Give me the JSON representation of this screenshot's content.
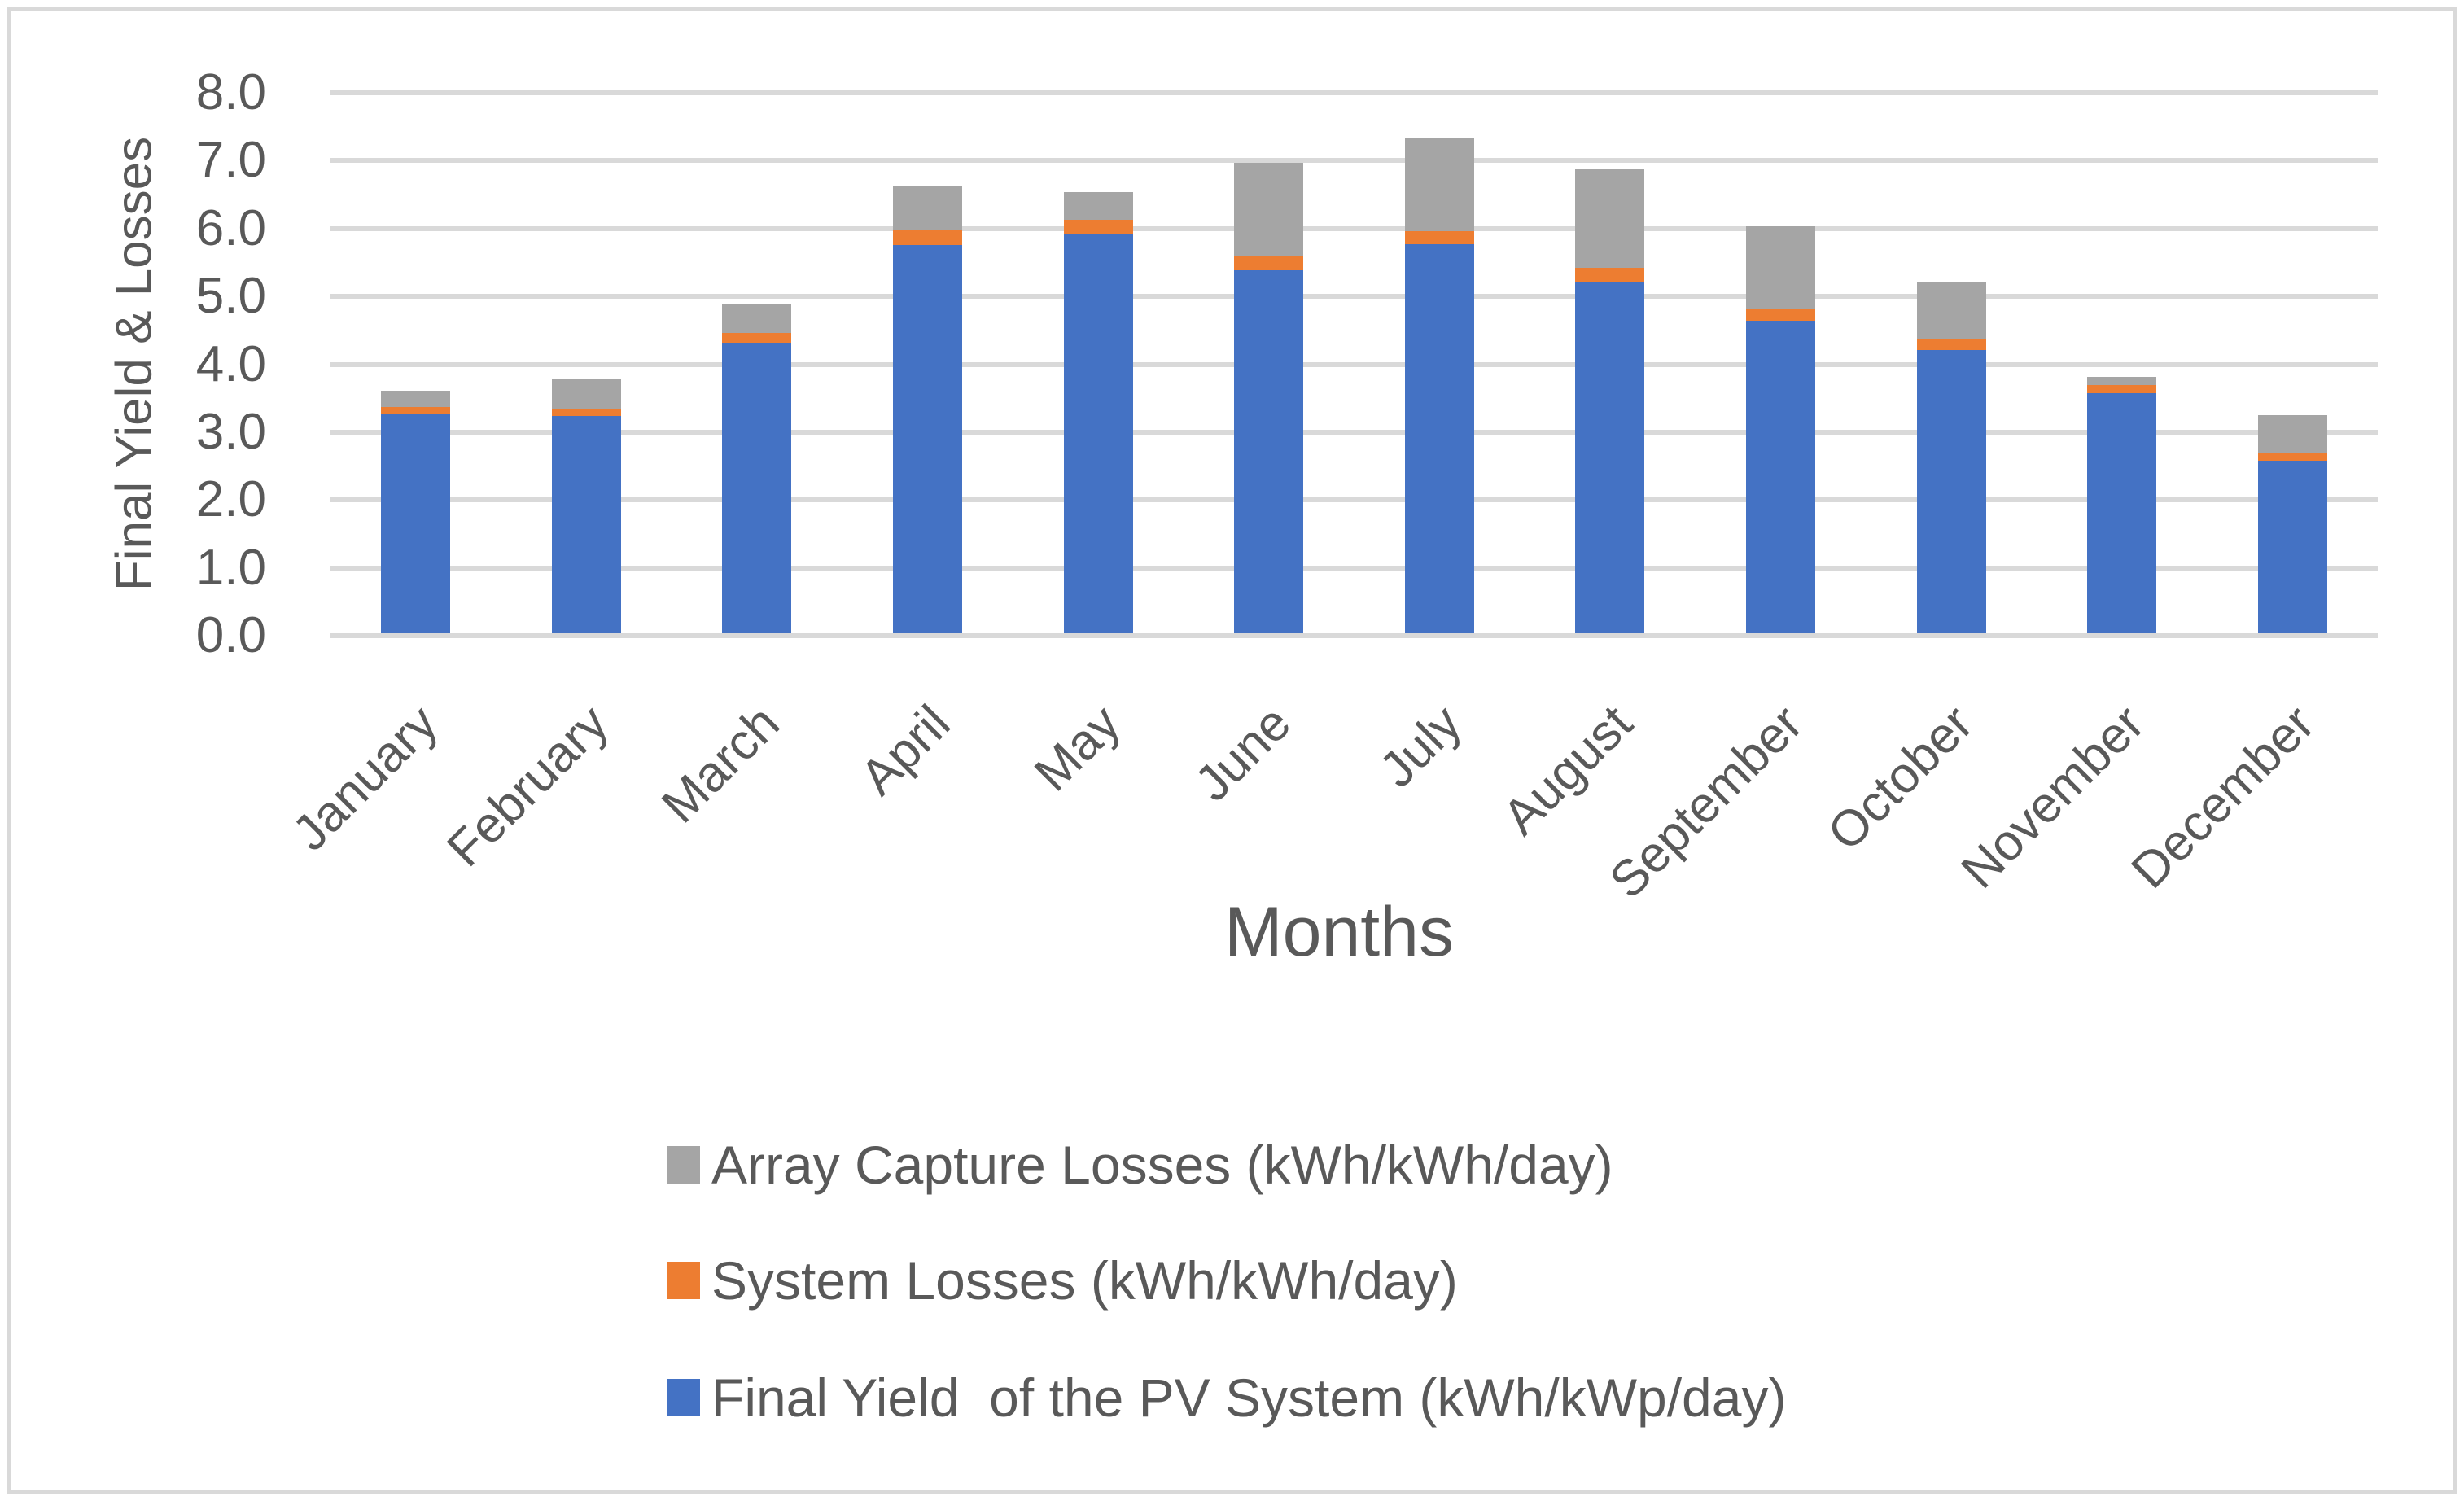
{
  "chart": {
    "y_axis_title": "Final Yield & Losses",
    "x_axis_title": "Months"
  },
  "chart_data": {
    "type": "bar",
    "stacked": true,
    "title": "",
    "xlabel": "Months",
    "ylabel": "Final Yield & Losses",
    "ylim": [
      0,
      8
    ],
    "grid": "horizontal",
    "legend_position": "bottom-left",
    "y_tick_labels": [
      "0.0",
      "1.0",
      "2.0",
      "3.0",
      "4.0",
      "5.0",
      "6.0",
      "7.0",
      "8.0"
    ],
    "categories": [
      "January",
      "February",
      "March",
      "April",
      "May",
      "June",
      "July",
      "August",
      "September",
      "October",
      "November",
      "December"
    ],
    "series": [
      {
        "key": "final-yield",
        "name": "Final Yield  of the PV System (kWh/kWp/day)",
        "color": "#4472C4",
        "values": [
          3.24,
          3.2,
          4.28,
          5.72,
          5.88,
          5.35,
          5.73,
          5.18,
          4.6,
          4.17,
          3.54,
          2.54
        ]
      },
      {
        "key": "system-losses",
        "name": "System Losses (kWh/kWh/day)",
        "color": "#ED7D31",
        "values": [
          0.1,
          0.11,
          0.15,
          0.22,
          0.21,
          0.2,
          0.19,
          0.2,
          0.18,
          0.16,
          0.12,
          0.11
        ]
      },
      {
        "key": "array-capture-losses",
        "name": "Array Capture Losses (kWh/kWh/day)",
        "color": "#A5A5A5",
        "values": [
          0.24,
          0.43,
          0.42,
          0.66,
          0.41,
          1.38,
          1.38,
          1.46,
          1.22,
          0.85,
          0.12,
          0.57
        ]
      }
    ],
    "stack_totals": [
      3.58,
      3.74,
      4.85,
      6.6,
      6.5,
      6.93,
      7.3,
      6.84,
      6.0,
      5.18,
      3.78,
      3.22
    ],
    "legend": [
      {
        "series_key": "array-capture-losses",
        "label": "Array Capture Losses (kWh/kWh/day)",
        "color": "#A5A5A5"
      },
      {
        "series_key": "system-losses",
        "label": "System Losses (kWh/kWh/day)",
        "color": "#ED7D31"
      },
      {
        "series_key": "final-yield",
        "label": "Final Yield  of the PV System (kWh/kWp/day)",
        "color": "#4472C4"
      }
    ]
  },
  "style": {
    "bar_blue": "#4472C4",
    "bar_orange": "#ED7D31",
    "bar_gray": "#A5A5A5",
    "gridline_color": "#D9D9D9",
    "axis_line_color": "#D9D9D9",
    "text_color": "#595959",
    "frame_border_color": "#D9D9D9",
    "background": "#FFFFFF"
  }
}
